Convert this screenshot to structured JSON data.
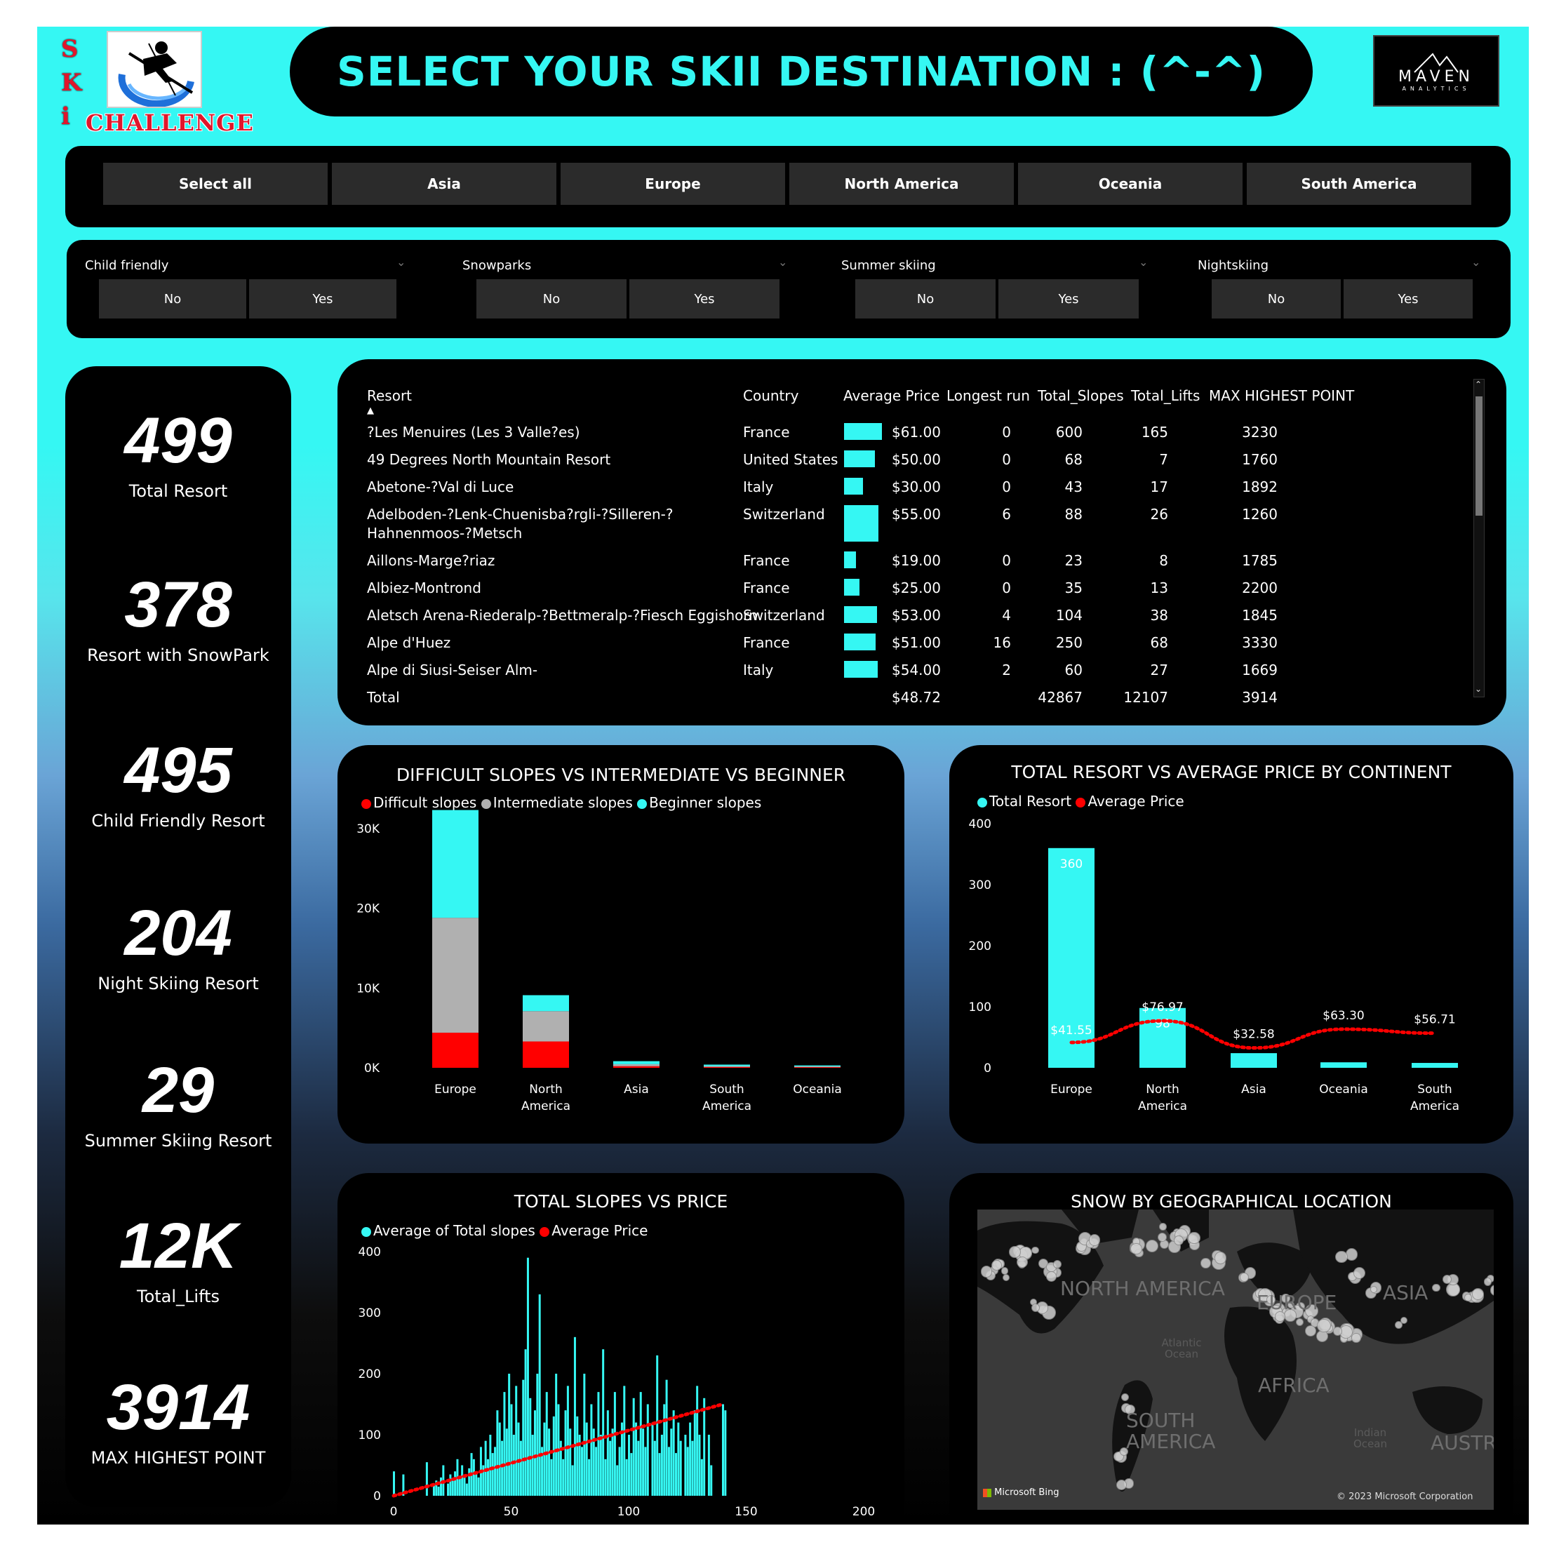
{
  "header": {
    "logo_letters": [
      "S",
      "K",
      "i"
    ],
    "logo_word": "CHALLENGE",
    "title": "SELECT YOUR SKII DESTINATION : (^-^)",
    "maven_name": "MAVEN",
    "maven_sub": "ANALYTICS"
  },
  "continents": [
    "Select all",
    "Asia",
    "Europe",
    "North America",
    "Oceania",
    "South America"
  ],
  "filters": [
    {
      "label": "Child friendly",
      "no": "No",
      "yes": "Yes"
    },
    {
      "label": "Snowparks",
      "no": "No",
      "yes": "Yes"
    },
    {
      "label": "Summer skiing",
      "no": "No",
      "yes": "Yes"
    },
    {
      "label": "Nightskiing",
      "no": "No",
      "yes": "Yes"
    }
  ],
  "kpis": [
    {
      "value": "499",
      "label": "Total Resort"
    },
    {
      "value": "378",
      "label": "Resort with SnowPark"
    },
    {
      "value": "495",
      "label": "Child Friendly Resort"
    },
    {
      "value": "204",
      "label": "Night Skiing Resort"
    },
    {
      "value": "29",
      "label": "Summer Skiing Resort"
    },
    {
      "value": "12K",
      "label": "Total_Lifts"
    },
    {
      "value": "3914",
      "label": "MAX HIGHEST POINT"
    }
  ],
  "table": {
    "columns": [
      "Resort",
      "Country",
      "Average Price",
      "Longest run",
      "Total_Slopes",
      "Total_Lifts",
      "MAX HIGHEST POINT"
    ],
    "rows": [
      {
        "resort": "?Les Menuires (Les 3 Valle?es)",
        "country": "France",
        "price": "$61.00",
        "price_value": 61,
        "run": "0",
        "slopes": "600",
        "lifts": "165",
        "max": "3230"
      },
      {
        "resort": "49 Degrees North Mountain Resort",
        "country": "United States",
        "price": "$50.00",
        "price_value": 50,
        "run": "0",
        "slopes": "68",
        "lifts": "7",
        "max": "1760"
      },
      {
        "resort": "Abetone-?Val di Luce",
        "country": "Italy",
        "price": "$30.00",
        "price_value": 30,
        "run": "0",
        "slopes": "43",
        "lifts": "17",
        "max": "1892"
      },
      {
        "resort": "Adelboden-?Lenk-Chuenisba?rgli-?Silleren-?",
        "resort2": "Hahnenmoos-?Metsch",
        "country": "Switzerland",
        "price": "$55.00",
        "price_value": 55,
        "run": "6",
        "slopes": "88",
        "lifts": "26",
        "max": "1260"
      },
      {
        "resort": "Aillons-Marge?riaz",
        "country": "France",
        "price": "$19.00",
        "price_value": 19,
        "run": "0",
        "slopes": "23",
        "lifts": "8",
        "max": "1785"
      },
      {
        "resort": "Albiez-Montrond",
        "country": "France",
        "price": "$25.00",
        "price_value": 25,
        "run": "0",
        "slopes": "35",
        "lifts": "13",
        "max": "2200"
      },
      {
        "resort": "Aletsch Arena-Riederalp-?Bettmeralp-?Fiesch Eggishorn",
        "country": "Switzerland",
        "price": "$53.00",
        "price_value": 53,
        "run": "4",
        "slopes": "104",
        "lifts": "38",
        "max": "1845"
      },
      {
        "resort": "Alpe d'Huez",
        "country": "France",
        "price": "$51.00",
        "price_value": 51,
        "run": "16",
        "slopes": "250",
        "lifts": "68",
        "max": "3330"
      },
      {
        "resort": "Alpe di Siusi-Seiser Alm-",
        "country": "Italy",
        "price": "$54.00",
        "price_value": 54,
        "run": "2",
        "slopes": "60",
        "lifts": "27",
        "max": "1669"
      }
    ],
    "total": {
      "label": "Total",
      "price": "$48.72",
      "slopes": "42867",
      "lifts": "12107",
      "max": "3914"
    }
  },
  "chart_data": [
    {
      "type": "bar",
      "stacked": true,
      "title": "DIFFICULT SLOPES VS INTERMEDIATE VS BEGINNER",
      "categories": [
        "Europe",
        "North America",
        "Asia",
        "South America",
        "Oceania"
      ],
      "series": [
        {
          "name": "Difficult slopes",
          "color": "#ff0000",
          "values": [
            4400,
            3300,
            200,
            100,
            80
          ]
        },
        {
          "name": "Intermediate slopes",
          "color": "#b0b0b0",
          "values": [
            14400,
            3800,
            250,
            120,
            100
          ]
        },
        {
          "name": "Beginner slopes",
          "color": "#35f7f3",
          "values": [
            13500,
            2000,
            380,
            180,
            120
          ]
        }
      ],
      "yticks": [
        "30K",
        "20K",
        "10K",
        "0K"
      ],
      "ylim": [
        0,
        32000
      ],
      "legend": "top-left"
    },
    {
      "type": "bar+line",
      "title": "TOTAL RESORT VS AVERAGE PRICE BY CONTINENT",
      "categories": [
        "Europe",
        "North America",
        "Asia",
        "Oceania",
        "South America"
      ],
      "series": [
        {
          "name": "Total Resort",
          "color": "#35f7f3",
          "values": [
            360,
            98,
            24,
            9,
            8
          ],
          "labels": [
            "360",
            "98",
            "",
            "",
            ""
          ]
        },
        {
          "name": "Average Price",
          "color": "#ff0000",
          "values": [
            41.55,
            76.97,
            32.58,
            63.3,
            56.71
          ],
          "labels": [
            "$41.55",
            "$76.97",
            "$32.58",
            "$63.30",
            "$56.71"
          ]
        }
      ],
      "yticks": [
        "400",
        "300",
        "200",
        "100",
        "0"
      ],
      "ylim": [
        0,
        400
      ],
      "price_ylim": [
        0,
        400
      ],
      "legend": "top-left"
    },
    {
      "type": "bar+line",
      "title": "TOTAL SLOPES VS PRICE",
      "series": [
        {
          "name": "Average of Total slopes",
          "color": "#35f7f3"
        },
        {
          "name": "Average Price",
          "color": "#ff0000"
        }
      ],
      "x": [
        0,
        4,
        14,
        17,
        18,
        19,
        20,
        21,
        23,
        24,
        25,
        26,
        27,
        28,
        29,
        30,
        31,
        32,
        33,
        34,
        35,
        36,
        37,
        38,
        39,
        40,
        41,
        42,
        43,
        44,
        45,
        46,
        47,
        48,
        49,
        50,
        51,
        52,
        53,
        54,
        55,
        56,
        57,
        58,
        59,
        60,
        61,
        62,
        63,
        64,
        65,
        66,
        67,
        68,
        69,
        70,
        71,
        72,
        73,
        74,
        75,
        76,
        77,
        78,
        79,
        80,
        81,
        82,
        83,
        84,
        85,
        86,
        87,
        88,
        89,
        90,
        91,
        92,
        93,
        94,
        95,
        96,
        97,
        98,
        99,
        100,
        101,
        102,
        103,
        104,
        105,
        106,
        107,
        108,
        110,
        111,
        112,
        113,
        114,
        115,
        116,
        117,
        118,
        119,
        120,
        121,
        122,
        124,
        125,
        126,
        127,
        128,
        129,
        130,
        131,
        132,
        134,
        135,
        140,
        141
      ],
      "values": [
        40,
        35,
        55,
        20,
        25,
        15,
        30,
        50,
        20,
        35,
        25,
        40,
        60,
        30,
        50,
        35,
        20,
        45,
        70,
        60,
        40,
        30,
        80,
        50,
        90,
        60,
        100,
        70,
        80,
        140,
        120,
        90,
        170,
        110,
        200,
        150,
        100,
        180,
        120,
        90,
        190,
        240,
        390,
        160,
        100,
        140,
        200,
        330,
        80,
        120,
        170,
        110,
        60,
        130,
        200,
        150,
        90,
        60,
        140,
        180,
        110,
        50,
        260,
        130,
        100,
        80,
        200,
        120,
        60,
        150,
        110,
        80,
        170,
        100,
        240,
        60,
        140,
        90,
        110,
        170,
        50,
        80,
        120,
        180,
        60,
        100,
        70,
        160,
        120,
        90,
        170,
        110,
        80,
        150,
        120,
        90,
        230,
        70,
        100,
        150,
        190,
        80,
        110,
        140,
        70,
        120,
        90,
        100,
        80,
        120,
        90,
        140,
        180,
        100,
        60,
        160,
        100,
        50,
        150,
        140
      ],
      "price_line": {
        "x": [
          0,
          140
        ],
        "y": [
          0,
          150
        ]
      },
      "xticks": [
        "0",
        "50",
        "100",
        "150",
        "200"
      ],
      "yticks": [
        "400",
        "300",
        "200",
        "100",
        "0"
      ],
      "xlim": [
        0,
        200
      ],
      "ylim": [
        0,
        400
      ],
      "legend": "top-left"
    }
  ],
  "map": {
    "title": "SNOW BY GEOGRAPHICAL LOCATION",
    "regions": [
      "NORTH AMERICA",
      "EUROPE",
      "ASIA",
      "AFRICA",
      "SOUTH AMERICA",
      "AUSTRA"
    ],
    "oceans": [
      "Atlantic Ocean",
      "Indian Ocean"
    ],
    "bing": "Microsoft Bing",
    "copyright": "© 2023 Microsoft Corporation"
  }
}
